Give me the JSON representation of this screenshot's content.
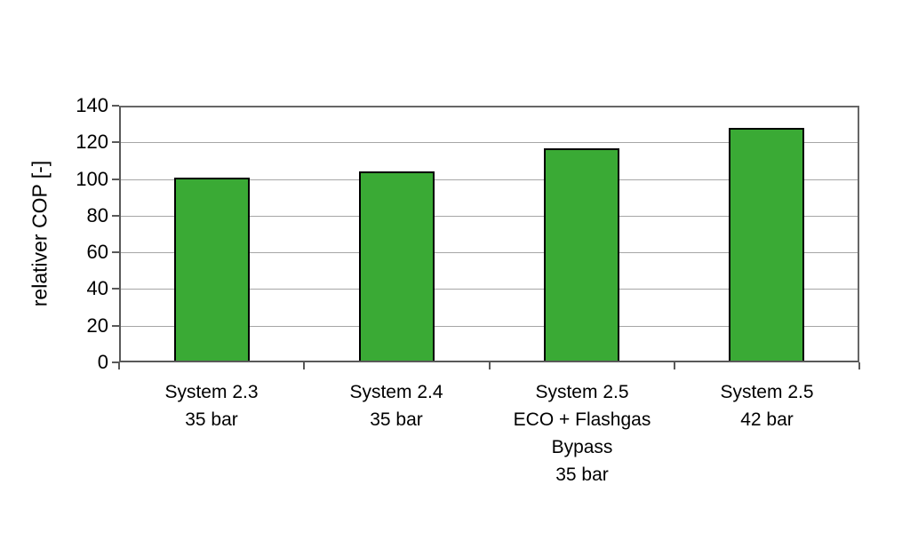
{
  "chart_data": {
    "type": "bar",
    "title": "",
    "xlabel": "",
    "ylabel": "relativer COP [-]",
    "categories": [
      "System 2.3\n35 bar",
      "System 2.4\n35 bar",
      "System 2.5\nECO + Flashgas\nBypass\n35 bar",
      "System 2.5\n42 bar"
    ],
    "values": [
      100,
      103,
      116,
      127
    ],
    "ylim": [
      0,
      140
    ],
    "yticks": [
      0,
      20,
      40,
      60,
      80,
      100,
      120,
      140
    ],
    "grid": "horizontal",
    "legend": "none",
    "colors": {
      "bar_fill": "#3AAA35",
      "bar_border": "#000000",
      "gridline": "#A6A6A6",
      "frame": "#666666",
      "axis": "#595959",
      "text": "#000000",
      "background": "#FFFFFF"
    }
  }
}
